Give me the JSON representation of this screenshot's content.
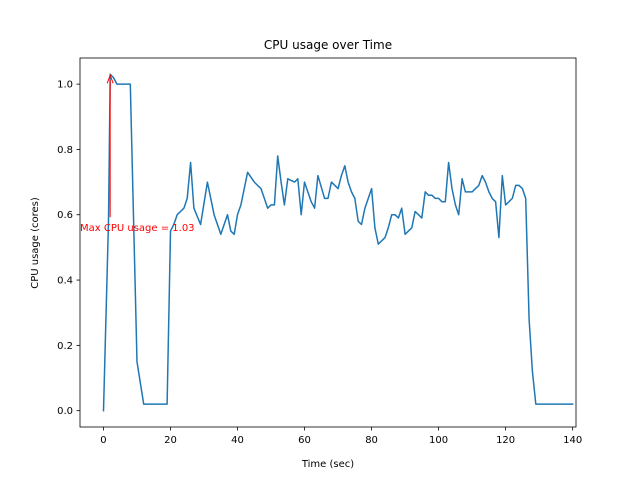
{
  "chart_data": {
    "type": "line",
    "title": "CPU usage over Time",
    "xlabel": "Time (sec)",
    "ylabel": "CPU usage (cores)",
    "xlim": [
      -7,
      141
    ],
    "ylim": [
      -0.05,
      1.08
    ],
    "xticks": [
      0,
      20,
      40,
      60,
      80,
      100,
      120,
      140
    ],
    "xtick_labels": [
      "0",
      "20",
      "40",
      "60",
      "80",
      "100",
      "120",
      "140"
    ],
    "yticks": [
      0.0,
      0.2,
      0.4,
      0.6,
      0.8,
      1.0
    ],
    "ytick_labels": [
      "0.0",
      "0.2",
      "0.4",
      "0.6",
      "0.8",
      "1.0"
    ],
    "grid": false,
    "line_color": "#1f77b4",
    "series": [
      {
        "x": [
          0,
          1.5,
          2,
          3,
          4,
          5,
          6,
          7,
          8,
          10,
          12,
          14,
          16,
          17,
          18,
          19,
          20,
          21,
          22,
          23,
          24,
          25,
          26,
          27,
          29,
          31,
          33,
          35,
          37,
          38,
          39,
          40,
          41,
          43,
          45,
          46,
          47,
          49,
          50,
          51,
          52,
          53,
          54,
          55,
          57,
          58,
          59,
          60,
          62,
          63,
          64,
          66,
          67,
          68,
          70,
          71,
          72,
          73,
          74,
          75,
          76,
          77,
          78,
          80,
          81,
          82,
          83,
          84,
          85,
          86,
          87,
          88,
          89,
          90,
          91,
          92,
          93,
          94,
          95,
          96,
          97,
          98,
          99,
          100,
          101,
          102,
          103,
          104,
          105,
          106,
          107,
          108,
          109,
          110,
          111,
          112,
          113,
          114,
          115,
          116,
          117,
          118,
          119,
          120,
          121,
          122,
          123,
          124,
          125,
          126,
          127,
          128,
          129,
          130,
          131,
          132,
          133,
          134,
          135,
          136,
          137,
          138,
          139,
          140
        ],
        "y": [
          0.0,
          0.58,
          1.03,
          1.02,
          1.0,
          1.0,
          1.0,
          1.0,
          1.0,
          0.15,
          0.02,
          0.02,
          0.02,
          0.02,
          0.02,
          0.02,
          0.55,
          0.57,
          0.6,
          0.61,
          0.62,
          0.65,
          0.76,
          0.62,
          0.57,
          0.7,
          0.6,
          0.54,
          0.6,
          0.55,
          0.54,
          0.6,
          0.63,
          0.73,
          0.7,
          0.69,
          0.68,
          0.62,
          0.63,
          0.63,
          0.78,
          0.7,
          0.63,
          0.71,
          0.7,
          0.71,
          0.6,
          0.7,
          0.64,
          0.62,
          0.72,
          0.65,
          0.65,
          0.7,
          0.68,
          0.72,
          0.75,
          0.7,
          0.67,
          0.65,
          0.58,
          0.57,
          0.62,
          0.68,
          0.56,
          0.51,
          0.52,
          0.53,
          0.56,
          0.6,
          0.6,
          0.59,
          0.62,
          0.54,
          0.55,
          0.56,
          0.61,
          0.6,
          0.59,
          0.67,
          0.66,
          0.66,
          0.65,
          0.65,
          0.64,
          0.64,
          0.76,
          0.68,
          0.63,
          0.6,
          0.71,
          0.67,
          0.67,
          0.67,
          0.68,
          0.69,
          0.72,
          0.7,
          0.67,
          0.65,
          0.64,
          0.53,
          0.72,
          0.63,
          0.64,
          0.65,
          0.69,
          0.69,
          0.68,
          0.65,
          0.28,
          0.12,
          0.02,
          0.02,
          0.02,
          0.02,
          0.02,
          0.02,
          0.02,
          0.02,
          0.02,
          0.02,
          0.02,
          0.02
        ]
      }
    ],
    "annotations": [
      {
        "text": "Max CPU usage = 1.03",
        "point_x": 2,
        "point_y": 1.03,
        "text_x": -7,
        "text_y": 0.55,
        "color": "#ff0000"
      }
    ]
  }
}
